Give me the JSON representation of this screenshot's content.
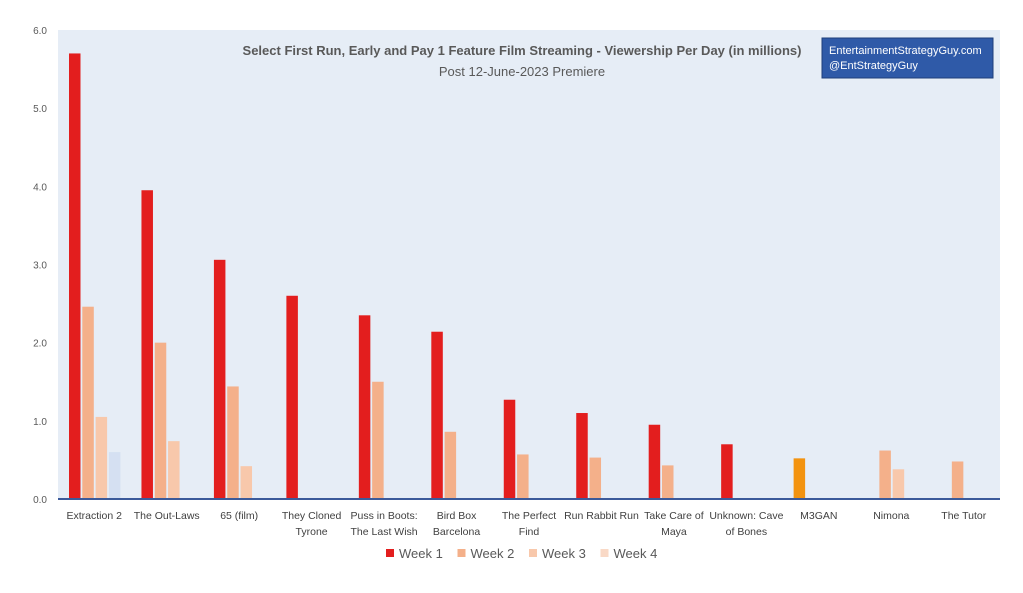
{
  "chart_data": {
    "type": "bar",
    "title": "Select First Run, Early and Pay 1 Feature Film Streaming - Viewership Per Day (in millions)",
    "subtitle": "Post 12-June-2023 Premiere",
    "watermark": [
      "EntertainmentStrategyGuy.com",
      "@EntStrategyGuy"
    ],
    "categories": [
      [
        "Extraction 2"
      ],
      [
        "The Out-Laws"
      ],
      [
        "65 (film)"
      ],
      [
        "They Cloned",
        "Tyrone"
      ],
      [
        "Puss in Boots:",
        "The Last Wish"
      ],
      [
        "Bird Box",
        "Barcelona"
      ],
      [
        "The Perfect",
        "Find"
      ],
      [
        "Run Rabbit Run"
      ],
      [
        "Take Care of",
        "Maya"
      ],
      [
        "Unknown: Cave",
        "of Bones"
      ],
      [
        "M3GAN"
      ],
      [
        "Nimona"
      ],
      [
        "The Tutor"
      ]
    ],
    "series": [
      {
        "name": "Week 1",
        "color": "#e31e1e",
        "values": [
          5.7,
          3.95,
          3.06,
          2.6,
          2.35,
          2.14,
          1.27,
          1.1,
          0.95,
          0.7,
          null,
          null,
          null
        ]
      },
      {
        "name": "Week 2",
        "color": "#f4b08a",
        "values": [
          2.46,
          2.0,
          1.44,
          null,
          1.5,
          0.86,
          0.57,
          0.53,
          0.43,
          null,
          null,
          0.62,
          0.48
        ]
      },
      {
        "name": "Week 3",
        "color": "#f8c8ab",
        "values": [
          1.05,
          0.74,
          0.42,
          null,
          null,
          null,
          null,
          null,
          null,
          null,
          null,
          0.38,
          null
        ]
      },
      {
        "name": "Week 4",
        "color": "#f9d9c6",
        "values": [
          null,
          null,
          null,
          null,
          null,
          null,
          null,
          null,
          null,
          null,
          null,
          null,
          null
        ]
      }
    ],
    "extra_bars": [
      {
        "category_index": 0,
        "slot": 3,
        "value": 0.6,
        "color": "#d5e0f2"
      },
      {
        "category_index": 10,
        "slot": 0,
        "value": 0.52,
        "color": "#f3930f"
      }
    ],
    "ylim": [
      0,
      6
    ],
    "yticks": [
      "0.0",
      "1.0",
      "2.0",
      "3.0",
      "4.0",
      "5.0",
      "6.0"
    ],
    "plot_background": "#e6edf6",
    "axis_color": "#3b5a9a",
    "legend_position": "bottom-center"
  }
}
